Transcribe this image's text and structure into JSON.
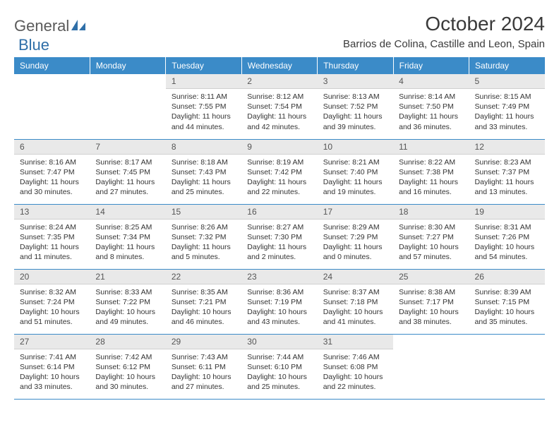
{
  "logo": {
    "word1": "General",
    "word2": "Blue"
  },
  "title": "October 2024",
  "location": "Barrios de Colina, Castille and Leon, Spain",
  "colors": {
    "header_bg": "#3b8bc8",
    "header_text": "#ffffff",
    "daynum_bg": "#e9e9e9",
    "text": "#333333",
    "rule": "#3b8bc8"
  },
  "weekdays": [
    "Sunday",
    "Monday",
    "Tuesday",
    "Wednesday",
    "Thursday",
    "Friday",
    "Saturday"
  ],
  "weeks": [
    [
      null,
      null,
      {
        "n": "1",
        "sr": "8:11 AM",
        "ss": "7:55 PM",
        "dl": "11 hours and 44 minutes."
      },
      {
        "n": "2",
        "sr": "8:12 AM",
        "ss": "7:54 PM",
        "dl": "11 hours and 42 minutes."
      },
      {
        "n": "3",
        "sr": "8:13 AM",
        "ss": "7:52 PM",
        "dl": "11 hours and 39 minutes."
      },
      {
        "n": "4",
        "sr": "8:14 AM",
        "ss": "7:50 PM",
        "dl": "11 hours and 36 minutes."
      },
      {
        "n": "5",
        "sr": "8:15 AM",
        "ss": "7:49 PM",
        "dl": "11 hours and 33 minutes."
      }
    ],
    [
      {
        "n": "6",
        "sr": "8:16 AM",
        "ss": "7:47 PM",
        "dl": "11 hours and 30 minutes."
      },
      {
        "n": "7",
        "sr": "8:17 AM",
        "ss": "7:45 PM",
        "dl": "11 hours and 27 minutes."
      },
      {
        "n": "8",
        "sr": "8:18 AM",
        "ss": "7:43 PM",
        "dl": "11 hours and 25 minutes."
      },
      {
        "n": "9",
        "sr": "8:19 AM",
        "ss": "7:42 PM",
        "dl": "11 hours and 22 minutes."
      },
      {
        "n": "10",
        "sr": "8:21 AM",
        "ss": "7:40 PM",
        "dl": "11 hours and 19 minutes."
      },
      {
        "n": "11",
        "sr": "8:22 AM",
        "ss": "7:38 PM",
        "dl": "11 hours and 16 minutes."
      },
      {
        "n": "12",
        "sr": "8:23 AM",
        "ss": "7:37 PM",
        "dl": "11 hours and 13 minutes."
      }
    ],
    [
      {
        "n": "13",
        "sr": "8:24 AM",
        "ss": "7:35 PM",
        "dl": "11 hours and 11 minutes."
      },
      {
        "n": "14",
        "sr": "8:25 AM",
        "ss": "7:34 PM",
        "dl": "11 hours and 8 minutes."
      },
      {
        "n": "15",
        "sr": "8:26 AM",
        "ss": "7:32 PM",
        "dl": "11 hours and 5 minutes."
      },
      {
        "n": "16",
        "sr": "8:27 AM",
        "ss": "7:30 PM",
        "dl": "11 hours and 2 minutes."
      },
      {
        "n": "17",
        "sr": "8:29 AM",
        "ss": "7:29 PM",
        "dl": "11 hours and 0 minutes."
      },
      {
        "n": "18",
        "sr": "8:30 AM",
        "ss": "7:27 PM",
        "dl": "10 hours and 57 minutes."
      },
      {
        "n": "19",
        "sr": "8:31 AM",
        "ss": "7:26 PM",
        "dl": "10 hours and 54 minutes."
      }
    ],
    [
      {
        "n": "20",
        "sr": "8:32 AM",
        "ss": "7:24 PM",
        "dl": "10 hours and 51 minutes."
      },
      {
        "n": "21",
        "sr": "8:33 AM",
        "ss": "7:22 PM",
        "dl": "10 hours and 49 minutes."
      },
      {
        "n": "22",
        "sr": "8:35 AM",
        "ss": "7:21 PM",
        "dl": "10 hours and 46 minutes."
      },
      {
        "n": "23",
        "sr": "8:36 AM",
        "ss": "7:19 PM",
        "dl": "10 hours and 43 minutes."
      },
      {
        "n": "24",
        "sr": "8:37 AM",
        "ss": "7:18 PM",
        "dl": "10 hours and 41 minutes."
      },
      {
        "n": "25",
        "sr": "8:38 AM",
        "ss": "7:17 PM",
        "dl": "10 hours and 38 minutes."
      },
      {
        "n": "26",
        "sr": "8:39 AM",
        "ss": "7:15 PM",
        "dl": "10 hours and 35 minutes."
      }
    ],
    [
      {
        "n": "27",
        "sr": "7:41 AM",
        "ss": "6:14 PM",
        "dl": "10 hours and 33 minutes."
      },
      {
        "n": "28",
        "sr": "7:42 AM",
        "ss": "6:12 PM",
        "dl": "10 hours and 30 minutes."
      },
      {
        "n": "29",
        "sr": "7:43 AM",
        "ss": "6:11 PM",
        "dl": "10 hours and 27 minutes."
      },
      {
        "n": "30",
        "sr": "7:44 AM",
        "ss": "6:10 PM",
        "dl": "10 hours and 25 minutes."
      },
      {
        "n": "31",
        "sr": "7:46 AM",
        "ss": "6:08 PM",
        "dl": "10 hours and 22 minutes."
      },
      null,
      null
    ]
  ],
  "labels": {
    "sunrise": "Sunrise: ",
    "sunset": "Sunset: ",
    "daylight": "Daylight: "
  }
}
